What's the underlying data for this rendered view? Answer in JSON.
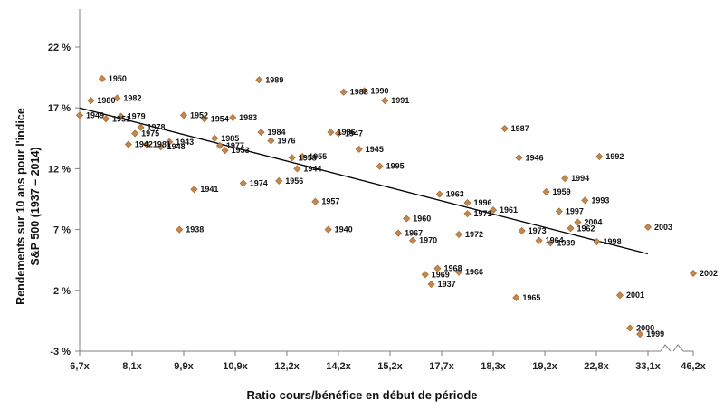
{
  "chart_data": {
    "type": "scatter",
    "ylabel_line1": "Rendements sur 10 ans pour l'indice",
    "ylabel_line2": "S&P 500 (1937 – 2014)",
    "xlabel": "Ratio cours/bénéfice en début de période",
    "y_ticks": [
      "22 %",
      "17 %",
      "12 %",
      "7 %",
      "2 %",
      "-3 %"
    ],
    "y_tick_values": [
      22,
      17,
      12,
      7,
      2,
      -3
    ],
    "ylim": [
      -3,
      22
    ],
    "x_ticks": [
      "6,7x",
      "8,1x",
      "9,9x",
      "10,9x",
      "12,2x",
      "14,2x",
      "15,2x",
      "17,7x",
      "18,3x",
      "19,2x",
      "22,8x",
      "33,1x",
      "46,2x"
    ],
    "x_axis_note": "rank-ordered (non-linear) P/E scale with axis break before 46,2x",
    "marker_color": "#c8874a",
    "marker_edge_color": "#9a6230",
    "trendline": {
      "color": "#000000",
      "from": {
        "x": 6.7,
        "y": 17.0
      },
      "to": {
        "x": 33.1,
        "y": 5.0
      }
    },
    "points": [
      {
        "label": "1950",
        "x": 7.3,
        "y": 19.4
      },
      {
        "label": "1980",
        "x": 7.0,
        "y": 17.6
      },
      {
        "label": "1982",
        "x": 7.7,
        "y": 17.8
      },
      {
        "label": "1949",
        "x": 6.7,
        "y": 16.4
      },
      {
        "label": "1951",
        "x": 7.4,
        "y": 16.1
      },
      {
        "label": "1979",
        "x": 7.8,
        "y": 16.3
      },
      {
        "label": "1978",
        "x": 8.4,
        "y": 15.4
      },
      {
        "label": "1975",
        "x": 8.2,
        "y": 14.9
      },
      {
        "label": "1942",
        "x": 8.0,
        "y": 14.0
      },
      {
        "label": "1981",
        "x": 8.6,
        "y": 14.0
      },
      {
        "label": "1948",
        "x": 9.1,
        "y": 13.8
      },
      {
        "label": "1943",
        "x": 9.4,
        "y": 14.2
      },
      {
        "label": "1952",
        "x": 9.9,
        "y": 16.4
      },
      {
        "label": "1954",
        "x": 10.3,
        "y": 16.1
      },
      {
        "label": "1983",
        "x": 10.85,
        "y": 16.2
      },
      {
        "label": "1985",
        "x": 10.5,
        "y": 14.5
      },
      {
        "label": "1977",
        "x": 10.6,
        "y": 13.9
      },
      {
        "label": "1953",
        "x": 10.7,
        "y": 13.5
      },
      {
        "label": "1941",
        "x": 10.1,
        "y": 10.3
      },
      {
        "label": "1938",
        "x": 9.75,
        "y": 7.0
      },
      {
        "label": "1989",
        "x": 11.5,
        "y": 19.3
      },
      {
        "label": "1984",
        "x": 11.55,
        "y": 15.0
      },
      {
        "label": "1976",
        "x": 11.8,
        "y": 14.3
      },
      {
        "label": "1974",
        "x": 11.1,
        "y": 10.8
      },
      {
        "label": "1958",
        "x": 12.4,
        "y": 12.9
      },
      {
        "label": "1956",
        "x": 12.0,
        "y": 11.0
      },
      {
        "label": "1944",
        "x": 12.6,
        "y": 12.0
      },
      {
        "label": "1955",
        "x": 12.8,
        "y": 13.0
      },
      {
        "label": "1957",
        "x": 13.3,
        "y": 9.3
      },
      {
        "label": "1940",
        "x": 13.8,
        "y": 7.0
      },
      {
        "label": "1986",
        "x": 13.9,
        "y": 15.0
      },
      {
        "label": "1988",
        "x": 14.3,
        "y": 18.3
      },
      {
        "label": "1947",
        "x": 14.2,
        "y": 14.9
      },
      {
        "label": "1990",
        "x": 14.7,
        "y": 18.4
      },
      {
        "label": "1945",
        "x": 14.6,
        "y": 13.6
      },
      {
        "label": "1991",
        "x": 15.1,
        "y": 17.6
      },
      {
        "label": "1995",
        "x": 15.0,
        "y": 12.2
      },
      {
        "label": "1960",
        "x": 16.0,
        "y": 7.9
      },
      {
        "label": "1967",
        "x": 15.6,
        "y": 6.7
      },
      {
        "label": "1970",
        "x": 16.3,
        "y": 6.1
      },
      {
        "label": "1963",
        "x": 17.6,
        "y": 9.9
      },
      {
        "label": "1996",
        "x": 18.0,
        "y": 9.2
      },
      {
        "label": "1961",
        "x": 18.3,
        "y": 8.6
      },
      {
        "label": "1971",
        "x": 18.0,
        "y": 8.3
      },
      {
        "label": "1972",
        "x": 17.9,
        "y": 6.6
      },
      {
        "label": "1969",
        "x": 16.9,
        "y": 3.3
      },
      {
        "label": "1968",
        "x": 17.5,
        "y": 3.8
      },
      {
        "label": "1937",
        "x": 17.2,
        "y": 2.5
      },
      {
        "label": "1966",
        "x": 17.9,
        "y": 3.5
      },
      {
        "label": "1987",
        "x": 18.5,
        "y": 15.3
      },
      {
        "label": "1946",
        "x": 18.75,
        "y": 12.9
      },
      {
        "label": "1965",
        "x": 18.7,
        "y": 1.4
      },
      {
        "label": "1973",
        "x": 18.8,
        "y": 6.9
      },
      {
        "label": "1964",
        "x": 19.1,
        "y": 6.1
      },
      {
        "label": "1959",
        "x": 19.3,
        "y": 10.1
      },
      {
        "label": "1939",
        "x": 19.6,
        "y": 5.9
      },
      {
        "label": "1994",
        "x": 20.6,
        "y": 11.2
      },
      {
        "label": "1997",
        "x": 20.2,
        "y": 8.5
      },
      {
        "label": "2004",
        "x": 21.5,
        "y": 7.6
      },
      {
        "label": "1962",
        "x": 21.0,
        "y": 7.1
      },
      {
        "label": "1993",
        "x": 22.0,
        "y": 9.4
      },
      {
        "label": "1992",
        "x": 23.4,
        "y": 13.0
      },
      {
        "label": "1998",
        "x": 22.9,
        "y": 6.0
      },
      {
        "label": "2003",
        "x": 33.1,
        "y": 7.2
      },
      {
        "label": "2001",
        "x": 27.5,
        "y": 1.6
      },
      {
        "label": "2000",
        "x": 29.5,
        "y": -1.1
      },
      {
        "label": "1999",
        "x": 31.5,
        "y": -1.6
      },
      {
        "label": "2002",
        "x": 46.2,
        "y": 3.4
      }
    ]
  }
}
